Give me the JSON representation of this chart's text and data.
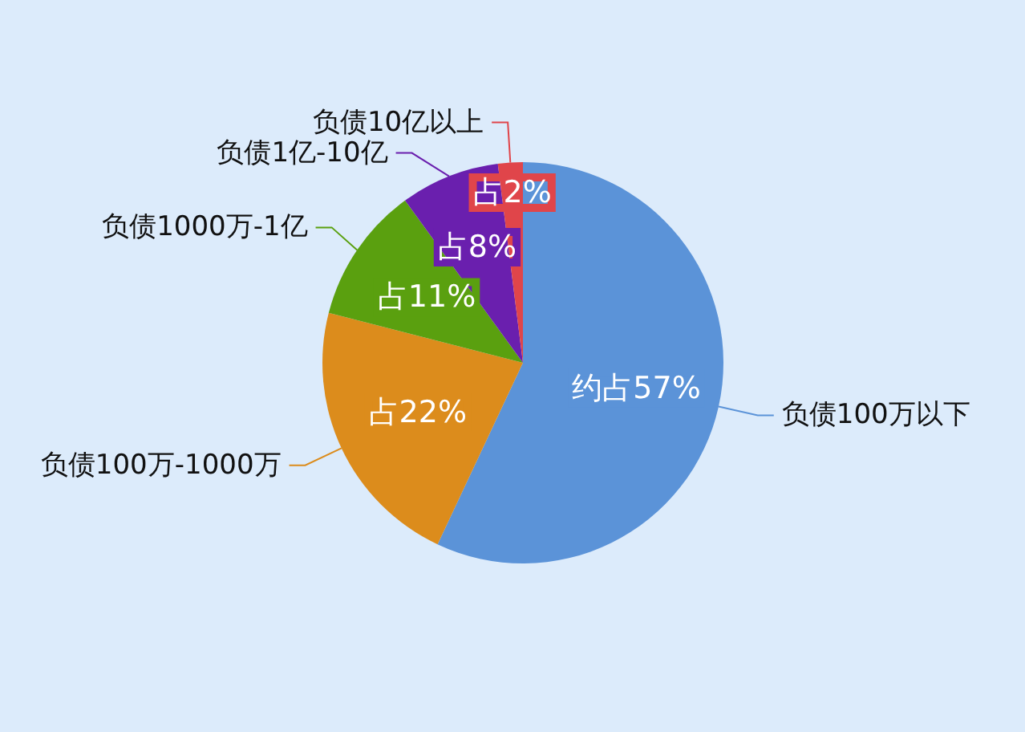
{
  "chart_data": {
    "type": "pie",
    "categories": [
      "负债100万以下",
      "负债100万-1000万",
      "负债1000万-1亿",
      "负债1亿-10亿",
      "负债10亿以上"
    ],
    "values": [
      57,
      22,
      11,
      8,
      2
    ],
    "value_labels": [
      "约占57%",
      "占22%",
      "占11%",
      "占8%",
      "占2%"
    ],
    "colors": [
      "#5b93d8",
      "#dc8c1c",
      "#5aa00f",
      "#6a1fae",
      "#e0454a"
    ]
  }
}
